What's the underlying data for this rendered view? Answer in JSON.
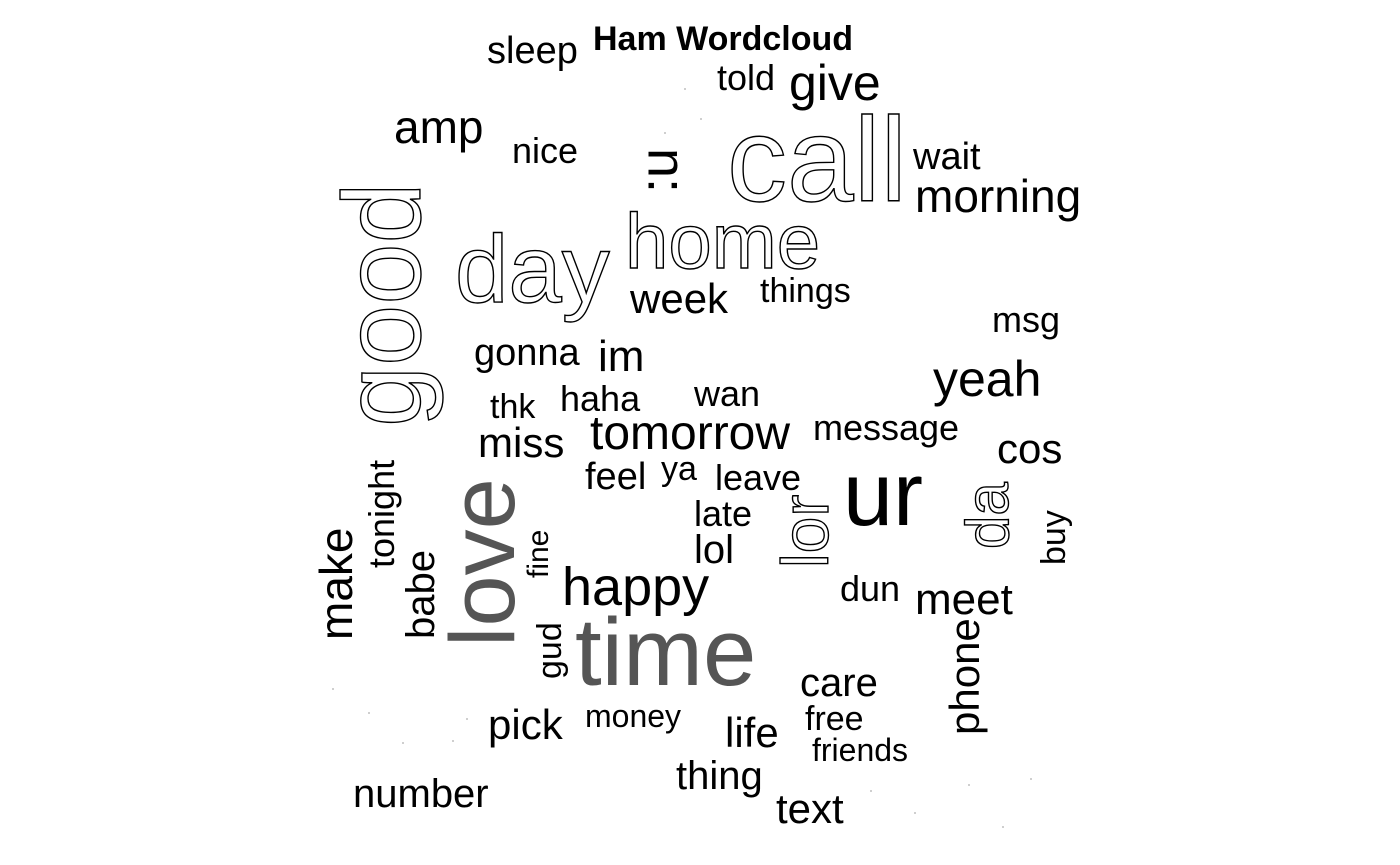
{
  "chart_data": {
    "type": "wordcloud",
    "title": "Ham Wordcloud",
    "words": [
      {
        "text": "call",
        "rank": 1
      },
      {
        "text": "good",
        "rank": 2
      },
      {
        "text": "love",
        "rank": 3
      },
      {
        "text": "time",
        "rank": 4
      },
      {
        "text": "ur",
        "rank": 5
      },
      {
        "text": "home",
        "rank": 6
      },
      {
        "text": "day",
        "rank": 7
      },
      {
        "text": ":u",
        "rank": 8
      },
      {
        "text": "lor",
        "rank": 9
      },
      {
        "text": "da",
        "rank": 10
      },
      {
        "text": "make",
        "rank": 11
      },
      {
        "text": "happy",
        "rank": 12
      },
      {
        "text": "tomorrow",
        "rank": 13
      },
      {
        "text": "yeah",
        "rank": 14
      },
      {
        "text": "give",
        "rank": 15
      },
      {
        "text": "amp",
        "rank": 16
      },
      {
        "text": "morning",
        "rank": 17
      },
      {
        "text": "meet",
        "rank": 18
      },
      {
        "text": "phone",
        "rank": 19
      },
      {
        "text": "week",
        "rank": 20
      },
      {
        "text": "miss",
        "rank": 21
      },
      {
        "text": "im",
        "rank": 22
      },
      {
        "text": "babe",
        "rank": 23
      },
      {
        "text": "tonight",
        "rank": 24
      },
      {
        "text": "cos",
        "rank": 25
      },
      {
        "text": "text",
        "rank": 26
      },
      {
        "text": "pick",
        "rank": 27
      },
      {
        "text": "life",
        "rank": 28
      },
      {
        "text": "number",
        "rank": 29
      },
      {
        "text": "thing",
        "rank": 30
      },
      {
        "text": "care",
        "rank": 31
      },
      {
        "text": "sleep",
        "rank": 32
      },
      {
        "text": "wait",
        "rank": 33
      },
      {
        "text": "gonna",
        "rank": 34
      },
      {
        "text": "nice",
        "rank": 35
      },
      {
        "text": "things",
        "rank": 36
      },
      {
        "text": "wan",
        "rank": 37
      },
      {
        "text": "haha",
        "rank": 38
      },
      {
        "text": "feel",
        "rank": 39
      },
      {
        "text": "leave",
        "rank": 40
      },
      {
        "text": "late",
        "rank": 41
      },
      {
        "text": "lol",
        "rank": 42
      },
      {
        "text": "gud",
        "rank": 43
      },
      {
        "text": "message",
        "rank": 44
      },
      {
        "text": "msg",
        "rank": 45
      },
      {
        "text": "told",
        "rank": 46
      },
      {
        "text": "thk",
        "rank": 47
      },
      {
        "text": "ya",
        "rank": 48
      },
      {
        "text": "fine",
        "rank": 49
      },
      {
        "text": "buy",
        "rank": 50
      },
      {
        "text": "dun",
        "rank": 51
      },
      {
        "text": "money",
        "rank": 52
      },
      {
        "text": "free",
        "rank": 53
      },
      {
        "text": "friends",
        "rank": 54
      }
    ]
  }
}
